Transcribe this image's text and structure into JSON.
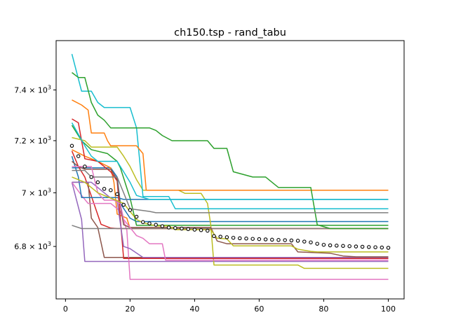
{
  "chart_data": {
    "type": "line",
    "title": "ch150.tsp - rand_tabu",
    "xlabel": "",
    "ylabel": "",
    "y_scale": "log",
    "xlim": [
      -2.9,
      104.9
    ],
    "ylim": [
      6610,
      7600
    ],
    "x_ticks": [
      {
        "value": 0,
        "label": "0"
      },
      {
        "value": 20,
        "label": "20"
      },
      {
        "value": 40,
        "label": "40"
      },
      {
        "value": 60,
        "label": "60"
      },
      {
        "value": 80,
        "label": "80"
      },
      {
        "value": 100,
        "label": "100"
      }
    ],
    "y_ticks": [
      {
        "value": 6800,
        "mantissa": "6.8",
        "exponent": "3"
      },
      {
        "value": 7000,
        "mantissa": "7",
        "exponent": "3"
      },
      {
        "value": 7200,
        "mantissa": "7.2",
        "exponent": "3"
      },
      {
        "value": 7400,
        "mantissa": "7.4",
        "exponent": "3"
      }
    ],
    "legend": "none",
    "series": [
      {
        "color": "#1f77b4",
        "points": [
          [
            2,
            7095
          ],
          [
            6,
            7095
          ],
          [
            10,
            7095
          ],
          [
            14,
            7095
          ],
          [
            16,
            7060
          ],
          [
            17,
            6960
          ],
          [
            20,
            6905
          ],
          [
            22,
            6892
          ],
          [
            30,
            6892
          ],
          [
            32,
            6892
          ],
          [
            100,
            6892
          ]
        ]
      },
      {
        "color": "#ff7f0e",
        "points": [
          [
            2,
            7165
          ],
          [
            6,
            7140
          ],
          [
            10,
            7120
          ],
          [
            14,
            7095
          ],
          [
            15,
            7040
          ],
          [
            16,
            6920
          ],
          [
            19,
            6905
          ],
          [
            20,
            6866
          ],
          [
            100,
            6866
          ]
        ]
      },
      {
        "color": "#2ca02c",
        "points": [
          [
            2,
            7260
          ],
          [
            5,
            7200
          ],
          [
            8,
            7165
          ],
          [
            13,
            7150
          ],
          [
            16,
            7120
          ],
          [
            17,
            7095
          ],
          [
            20,
            6980
          ],
          [
            22,
            6878
          ],
          [
            100,
            6878
          ]
        ]
      },
      {
        "color": "#d62728",
        "points": [
          [
            2,
            7160
          ],
          [
            4,
            7100
          ],
          [
            6,
            7060
          ],
          [
            11,
            6882
          ],
          [
            14,
            6868
          ],
          [
            16,
            6866
          ],
          [
            100,
            6866
          ]
        ]
      },
      {
        "color": "#9467bd",
        "points": [
          [
            2,
            7040
          ],
          [
            5,
            6900
          ],
          [
            6,
            6745
          ],
          [
            14,
            6745
          ],
          [
            100,
            6745
          ]
        ]
      },
      {
        "color": "#8c564b",
        "points": [
          [
            2,
            7040
          ],
          [
            7,
            7040
          ],
          [
            8,
            6905
          ],
          [
            10,
            6870
          ],
          [
            12,
            6760
          ],
          [
            16,
            6760
          ],
          [
            100,
            6760
          ]
        ]
      },
      {
        "color": "#e377c2",
        "points": [
          [
            2,
            7040
          ],
          [
            5,
            6990
          ],
          [
            7,
            6960
          ],
          [
            14,
            6960
          ],
          [
            17,
            6930
          ],
          [
            19,
            6860
          ],
          [
            20,
            6680
          ],
          [
            100,
            6680
          ]
        ]
      },
      {
        "color": "#7f7f7f",
        "points": [
          [
            2,
            6878
          ],
          [
            5,
            6866
          ],
          [
            100,
            6866
          ]
        ]
      },
      {
        "color": "#bcbd22",
        "points": [
          [
            2,
            7212
          ],
          [
            6,
            7200
          ],
          [
            8,
            7175
          ],
          [
            16,
            7175
          ],
          [
            18,
            7140
          ],
          [
            20,
            7100
          ],
          [
            22,
            7050
          ],
          [
            24,
            7010
          ],
          [
            35,
            7010
          ],
          [
            37,
            6998
          ],
          [
            42,
            6998
          ],
          [
            44,
            6960
          ],
          [
            45,
            6880
          ],
          [
            46,
            6732
          ],
          [
            72,
            6732
          ],
          [
            74,
            6720
          ],
          [
            100,
            6720
          ]
        ]
      },
      {
        "color": "#17becf",
        "points": [
          [
            2,
            7545
          ],
          [
            5,
            7395
          ],
          [
            8,
            7395
          ],
          [
            10,
            7350
          ],
          [
            12,
            7330
          ],
          [
            20,
            7330
          ],
          [
            22,
            7250
          ],
          [
            23,
            7120
          ],
          [
            24,
            6986
          ],
          [
            32,
            6986
          ],
          [
            34,
            6940
          ],
          [
            100,
            6940
          ]
        ]
      },
      {
        "color": "#1f77b4",
        "points": [
          [
            2,
            7140
          ],
          [
            4,
            7060
          ],
          [
            5,
            6982
          ],
          [
            16,
            6982
          ],
          [
            18,
            6975
          ],
          [
            100,
            6975
          ]
        ]
      },
      {
        "color": "#ff7f0e",
        "points": [
          [
            2,
            7360
          ],
          [
            5,
            7340
          ],
          [
            7,
            7320
          ],
          [
            8,
            7230
          ],
          [
            9,
            7230
          ],
          [
            12,
            7230
          ],
          [
            13,
            7200
          ],
          [
            14,
            7180
          ],
          [
            22,
            7180
          ],
          [
            24,
            7150
          ],
          [
            25,
            7010
          ],
          [
            100,
            7010
          ]
        ]
      },
      {
        "color": "#2ca02c",
        "points": [
          [
            2,
            7470
          ],
          [
            4,
            7450
          ],
          [
            6,
            7450
          ],
          [
            8,
            7350
          ],
          [
            10,
            7300
          ],
          [
            12,
            7280
          ],
          [
            14,
            7250
          ],
          [
            26,
            7250
          ],
          [
            28,
            7240
          ],
          [
            30,
            7220
          ],
          [
            33,
            7200
          ],
          [
            44,
            7200
          ],
          [
            46,
            7170
          ],
          [
            50,
            7170
          ],
          [
            52,
            7080
          ],
          [
            58,
            7060
          ],
          [
            62,
            7060
          ],
          [
            64,
            7040
          ],
          [
            66,
            7020
          ],
          [
            76,
            7020
          ],
          [
            78,
            6880
          ],
          [
            82,
            6866
          ],
          [
            100,
            6866
          ]
        ]
      },
      {
        "color": "#d62728",
        "points": [
          [
            2,
            7285
          ],
          [
            4,
            7270
          ],
          [
            6,
            7130
          ],
          [
            10,
            7120
          ],
          [
            14,
            7080
          ],
          [
            16,
            7045
          ],
          [
            18,
            6756
          ],
          [
            100,
            6756
          ]
        ]
      },
      {
        "color": "#9467bd",
        "points": [
          [
            2,
            7040
          ],
          [
            8,
            7040
          ],
          [
            10,
            7020
          ],
          [
            14,
            6980
          ],
          [
            16,
            6970
          ],
          [
            18,
            6800
          ],
          [
            20,
            6792
          ],
          [
            24,
            6760
          ],
          [
            100,
            6760
          ]
        ]
      },
      {
        "color": "#8c564b",
        "points": [
          [
            2,
            7120
          ],
          [
            4,
            7100
          ],
          [
            6,
            7090
          ],
          [
            14,
            7090
          ],
          [
            16,
            7050
          ],
          [
            17,
            6950
          ],
          [
            18,
            6880
          ],
          [
            20,
            6870
          ],
          [
            24,
            6870
          ],
          [
            45,
            6870
          ],
          [
            47,
            6820
          ],
          [
            50,
            6810
          ],
          [
            70,
            6810
          ],
          [
            72,
            6780
          ],
          [
            82,
            6775
          ],
          [
            86,
            6765
          ],
          [
            90,
            6762
          ],
          [
            100,
            6762
          ]
        ]
      },
      {
        "color": "#e377c2",
        "points": [
          [
            2,
            7100
          ],
          [
            8,
            7100
          ],
          [
            10,
            7000
          ],
          [
            12,
            6972
          ],
          [
            15,
            6972
          ],
          [
            17,
            6958
          ],
          [
            18,
            6900
          ],
          [
            20,
            6870
          ],
          [
            22,
            6840
          ],
          [
            24,
            6830
          ],
          [
            26,
            6810
          ],
          [
            30,
            6810
          ],
          [
            31,
            6750
          ],
          [
            100,
            6750
          ]
        ]
      },
      {
        "color": "#7f7f7f",
        "points": [
          [
            2,
            7085
          ],
          [
            6,
            7085
          ],
          [
            8,
            7060
          ],
          [
            16,
            7060
          ],
          [
            18,
            7000
          ],
          [
            20,
            6940
          ],
          [
            26,
            6930
          ],
          [
            28,
            6925
          ],
          [
            100,
            6925
          ]
        ]
      },
      {
        "color": "#bcbd22",
        "points": [
          [
            2,
            7060
          ],
          [
            6,
            7040
          ],
          [
            10,
            7000
          ],
          [
            14,
            6980
          ],
          [
            18,
            6960
          ],
          [
            22,
            6900
          ],
          [
            24,
            6888
          ],
          [
            28,
            6876
          ],
          [
            32,
            6876
          ],
          [
            34,
            6862
          ],
          [
            45,
            6862
          ],
          [
            47,
            6830
          ],
          [
            50,
            6828
          ],
          [
            52,
            6802
          ],
          [
            70,
            6802
          ],
          [
            72,
            6790
          ],
          [
            76,
            6782
          ],
          [
            78,
            6780
          ],
          [
            100,
            6780
          ]
        ]
      },
      {
        "color": "#17becf",
        "points": [
          [
            2,
            7270
          ],
          [
            6,
            7180
          ],
          [
            8,
            7140
          ],
          [
            10,
            7120
          ],
          [
            16,
            7120
          ],
          [
            18,
            7080
          ],
          [
            20,
            7040
          ],
          [
            22,
            6990
          ],
          [
            26,
            6975
          ],
          [
            100,
            6975
          ]
        ]
      }
    ],
    "mean_series": {
      "marker": "hollow-circle",
      "points": [
        [
          2,
          7180
        ],
        [
          4,
          7140
        ],
        [
          6,
          7100
        ],
        [
          8,
          7060
        ],
        [
          10,
          7040
        ],
        [
          12,
          7015
        ],
        [
          14,
          7010
        ],
        [
          16,
          6995
        ],
        [
          18,
          6955
        ],
        [
          20,
          6935
        ],
        [
          22,
          6910
        ],
        [
          24,
          6890
        ],
        [
          26,
          6885
        ],
        [
          28,
          6880
        ],
        [
          30,
          6875
        ],
        [
          32,
          6870
        ],
        [
          34,
          6868
        ],
        [
          36,
          6866
        ],
        [
          38,
          6864
        ],
        [
          40,
          6862
        ],
        [
          42,
          6860
        ],
        [
          44,
          6858
        ],
        [
          46,
          6838
        ],
        [
          48,
          6836
        ],
        [
          50,
          6834
        ],
        [
          52,
          6832
        ],
        [
          54,
          6830
        ],
        [
          56,
          6829
        ],
        [
          58,
          6828
        ],
        [
          60,
          6827
        ],
        [
          62,
          6826
        ],
        [
          64,
          6825
        ],
        [
          66,
          6824
        ],
        [
          68,
          6823
        ],
        [
          70,
          6822
        ],
        [
          72,
          6821
        ],
        [
          74,
          6818
        ],
        [
          76,
          6815
        ],
        [
          78,
          6810
        ],
        [
          80,
          6806
        ],
        [
          82,
          6804
        ],
        [
          84,
          6803
        ],
        [
          86,
          6802
        ],
        [
          88,
          6801
        ],
        [
          90,
          6800
        ],
        [
          92,
          6799
        ],
        [
          94,
          6798
        ],
        [
          96,
          6797
        ],
        [
          98,
          6796
        ],
        [
          100,
          6795
        ]
      ]
    }
  }
}
